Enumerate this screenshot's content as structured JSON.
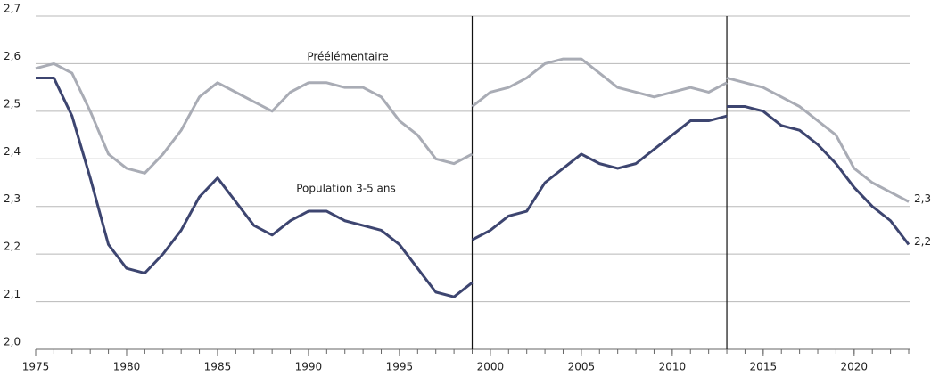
{
  "chart_data": {
    "type": "line",
    "x": [
      1975,
      1976,
      1977,
      1978,
      1979,
      1980,
      1981,
      1982,
      1983,
      1984,
      1985,
      1986,
      1987,
      1988,
      1989,
      1990,
      1991,
      1992,
      1993,
      1994,
      1995,
      1996,
      1997,
      1998,
      1999,
      1999,
      1999,
      2000,
      2001,
      2002,
      2003,
      2004,
      2005,
      2006,
      2007,
      2008,
      2009,
      2010,
      2011,
      2012,
      2013,
      2013,
      2013,
      2014,
      2015,
      2016,
      2017,
      2018,
      2019,
      2020,
      2021,
      2022,
      2023
    ],
    "series": [
      {
        "name": "Préélémentaire",
        "color": "#a9acb5",
        "end_label": "2,31",
        "values": [
          2.59,
          2.6,
          2.58,
          2.5,
          2.41,
          2.38,
          2.37,
          2.41,
          2.46,
          2.53,
          2.56,
          2.54,
          2.52,
          2.5,
          2.54,
          2.56,
          2.56,
          2.55,
          2.55,
          2.53,
          2.48,
          2.45,
          2.4,
          2.39,
          2.41,
          null,
          2.51,
          2.54,
          2.55,
          2.57,
          2.6,
          2.61,
          2.61,
          2.58,
          2.55,
          2.54,
          2.53,
          2.54,
          2.55,
          2.54,
          2.56,
          null,
          2.57,
          2.56,
          2.55,
          2.53,
          2.51,
          2.48,
          2.45,
          2.38,
          2.35,
          2.33,
          2.31
        ]
      },
      {
        "name": "Population 3-5 ans",
        "color": "#3d4570",
        "end_label": "2,22",
        "values": [
          2.57,
          2.57,
          2.49,
          2.36,
          2.22,
          2.17,
          2.16,
          2.2,
          2.25,
          2.32,
          2.36,
          2.31,
          2.26,
          2.24,
          2.27,
          2.29,
          2.29,
          2.27,
          2.26,
          2.25,
          2.22,
          2.17,
          2.12,
          2.11,
          2.14,
          null,
          2.23,
          2.25,
          2.28,
          2.29,
          2.35,
          2.38,
          2.41,
          2.39,
          2.38,
          2.39,
          2.42,
          2.45,
          2.48,
          2.48,
          2.49,
          null,
          2.51,
          2.51,
          2.5,
          2.47,
          2.46,
          2.43,
          2.39,
          2.34,
          2.3,
          2.27,
          2.22
        ]
      }
    ],
    "breaks": [
      1999,
      2013
    ],
    "xlim": [
      1975,
      2023
    ],
    "xticks": [
      1975,
      1980,
      1985,
      1990,
      1995,
      2000,
      2005,
      2010,
      2015,
      2020
    ],
    "ylim": [
      2.0,
      2.7
    ],
    "yticks": [
      {
        "value": 2.0,
        "label": "2,0"
      },
      {
        "value": 2.1,
        "label": "2,1"
      },
      {
        "value": 2.2,
        "label": "2,2"
      },
      {
        "value": 2.3,
        "label": "2,3"
      },
      {
        "value": 2.4,
        "label": "2,4"
      },
      {
        "value": 2.5,
        "label": "2,5"
      },
      {
        "value": 2.6,
        "label": "2,6"
      },
      {
        "value": 2.7,
        "label": "2,7"
      }
    ],
    "grid": true
  }
}
